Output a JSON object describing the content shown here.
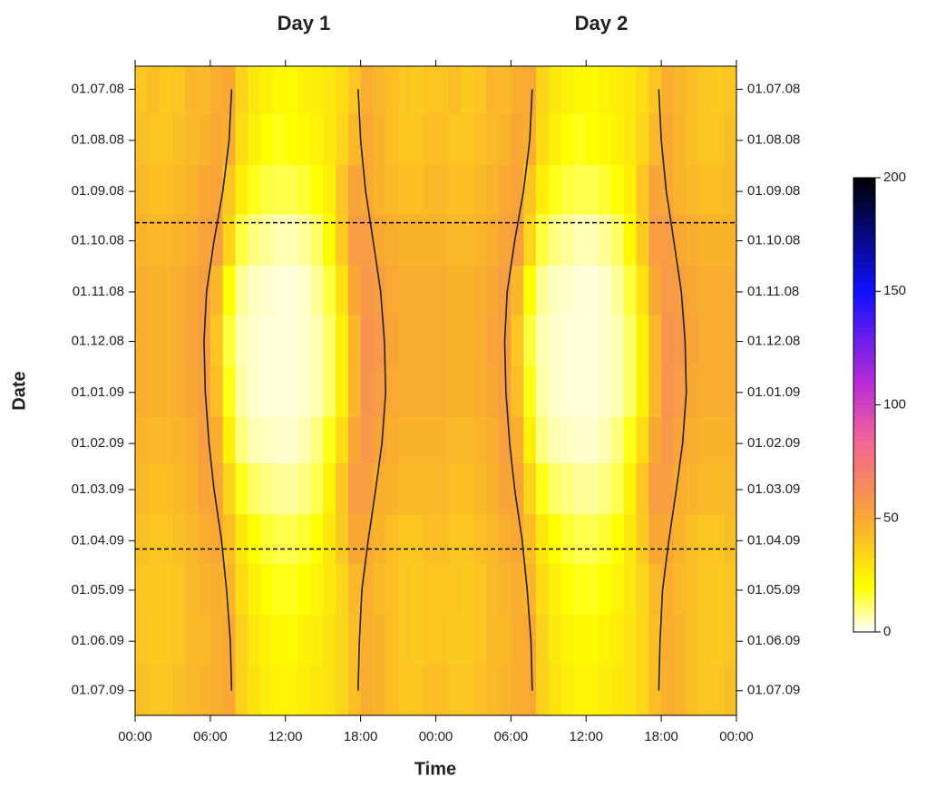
{
  "chart_data": {
    "type": "heatmap",
    "titles": [
      "Day 1",
      "Day 2"
    ],
    "xlabel": "Time",
    "ylabel": "Date",
    "xlim": [
      0,
      48
    ],
    "xticks": [
      {
        "value": 0,
        "label": "00:00"
      },
      {
        "value": 6,
        "label": "06:00"
      },
      {
        "value": 12,
        "label": "12:00"
      },
      {
        "value": 18,
        "label": "18:00"
      },
      {
        "value": 24,
        "label": "00:00"
      },
      {
        "value": 30,
        "label": "06:00"
      },
      {
        "value": 36,
        "label": "12:00"
      },
      {
        "value": 42,
        "label": "18:00"
      },
      {
        "value": 48,
        "label": "00:00"
      }
    ],
    "ylim": [
      -14,
      380
    ],
    "yticks": [
      {
        "value": 0,
        "label": "01.07.08"
      },
      {
        "value": 31,
        "label": "01.08.08"
      },
      {
        "value": 62,
        "label": "01.09.08"
      },
      {
        "value": 92,
        "label": "01.10.08"
      },
      {
        "value": 123,
        "label": "01.11.08"
      },
      {
        "value": 153,
        "label": "01.12.08"
      },
      {
        "value": 184,
        "label": "01.01.09"
      },
      {
        "value": 215,
        "label": "01.02.09"
      },
      {
        "value": 243,
        "label": "01.03.09"
      },
      {
        "value": 274,
        "label": "01.04.09"
      },
      {
        "value": 304,
        "label": "01.05.09"
      },
      {
        "value": 335,
        "label": "01.06.09"
      },
      {
        "value": 365,
        "label": "01.07.09"
      }
    ],
    "xbins": [
      0,
      1,
      2,
      3,
      4,
      5,
      6,
      7,
      8,
      9,
      10,
      11,
      12,
      13,
      14,
      15,
      16,
      17,
      18,
      19,
      20,
      21,
      22,
      23,
      24
    ],
    "ybins": [
      -14,
      15,
      46,
      76,
      107,
      137,
      168,
      199,
      227,
      258,
      288,
      319,
      349,
      380
    ],
    "values": [
      [
        40,
        42,
        38,
        40,
        45,
        44,
        48,
        50,
        35,
        28,
        25,
        22,
        22,
        24,
        26,
        28,
        32,
        40,
        48,
        45,
        42,
        40,
        38,
        40
      ],
      [
        42,
        40,
        40,
        42,
        44,
        46,
        50,
        48,
        32,
        25,
        20,
        18,
        20,
        22,
        24,
        28,
        34,
        44,
        50,
        46,
        42,
        40,
        40,
        42
      ],
      [
        44,
        42,
        42,
        44,
        46,
        50,
        52,
        40,
        26,
        18,
        15,
        14,
        14,
        16,
        20,
        26,
        40,
        52,
        50,
        46,
        44,
        42,
        42,
        44
      ],
      [
        46,
        44,
        44,
        46,
        48,
        52,
        55,
        35,
        15,
        10,
        8,
        6,
        6,
        8,
        12,
        22,
        38,
        55,
        56,
        50,
        48,
        46,
        46,
        46
      ],
      [
        48,
        46,
        46,
        48,
        50,
        55,
        45,
        20,
        8,
        5,
        4,
        3,
        3,
        4,
        8,
        15,
        30,
        50,
        58,
        55,
        50,
        48,
        48,
        48
      ],
      [
        48,
        46,
        46,
        48,
        52,
        55,
        40,
        15,
        6,
        4,
        3,
        3,
        3,
        4,
        6,
        12,
        25,
        45,
        60,
        58,
        52,
        48,
        48,
        48
      ],
      [
        48,
        46,
        46,
        48,
        50,
        55,
        42,
        18,
        7,
        4,
        3,
        3,
        3,
        4,
        6,
        12,
        25,
        45,
        60,
        56,
        50,
        48,
        48,
        48
      ],
      [
        46,
        44,
        44,
        46,
        48,
        54,
        48,
        25,
        10,
        6,
        5,
        4,
        4,
        6,
        10,
        18,
        32,
        50,
        58,
        52,
        48,
        46,
        46,
        46
      ],
      [
        44,
        42,
        42,
        44,
        46,
        52,
        52,
        35,
        18,
        12,
        10,
        8,
        8,
        10,
        14,
        24,
        40,
        55,
        54,
        48,
        46,
        44,
        44,
        44
      ],
      [
        42,
        40,
        40,
        42,
        44,
        48,
        50,
        42,
        28,
        20,
        16,
        14,
        14,
        16,
        20,
        28,
        38,
        50,
        50,
        46,
        42,
        40,
        40,
        42
      ],
      [
        40,
        40,
        38,
        40,
        44,
        46,
        48,
        46,
        32,
        25,
        20,
        18,
        18,
        20,
        24,
        28,
        34,
        44,
        48,
        44,
        42,
        40,
        38,
        40
      ],
      [
        40,
        38,
        38,
        40,
        44,
        44,
        48,
        50,
        36,
        28,
        24,
        22,
        22,
        24,
        26,
        30,
        34,
        42,
        48,
        46,
        42,
        40,
        38,
        40
      ],
      [
        42,
        40,
        40,
        42,
        44,
        46,
        48,
        50,
        36,
        30,
        26,
        24,
        24,
        26,
        28,
        30,
        34,
        42,
        48,
        46,
        42,
        40,
        40,
        42
      ]
    ],
    "curves": [
      {
        "color": "#222222",
        "x": [
          7.7,
          7.5,
          7.0,
          6.3,
          5.7,
          5.5,
          5.6,
          5.9,
          6.3,
          6.9,
          7.3,
          7.6,
          7.7
        ],
        "y": [
          0,
          31,
          62,
          92,
          123,
          153,
          184,
          215,
          243,
          274,
          304,
          335,
          365
        ]
      },
      {
        "color": "#222222",
        "x": [
          17.8,
          18.0,
          18.4,
          19.0,
          19.6,
          19.9,
          20.0,
          19.7,
          19.2,
          18.6,
          18.1,
          17.9,
          17.8
        ],
        "y": [
          0,
          31,
          62,
          92,
          123,
          153,
          184,
          215,
          243,
          274,
          304,
          335,
          365
        ]
      }
    ],
    "hlines": [
      81,
      279
    ],
    "colorbar": {
      "lim": [
        0,
        200
      ],
      "ticks": [
        0,
        50,
        100,
        150,
        200
      ],
      "colormap": [
        [
          0,
          "#ffffff"
        ],
        [
          20,
          "#ffff00"
        ],
        [
          50,
          "#f9a833"
        ],
        [
          85,
          "#f2629a"
        ],
        [
          110,
          "#b82bd8"
        ],
        [
          150,
          "#1010ff"
        ],
        [
          200,
          "#000000"
        ]
      ]
    }
  }
}
